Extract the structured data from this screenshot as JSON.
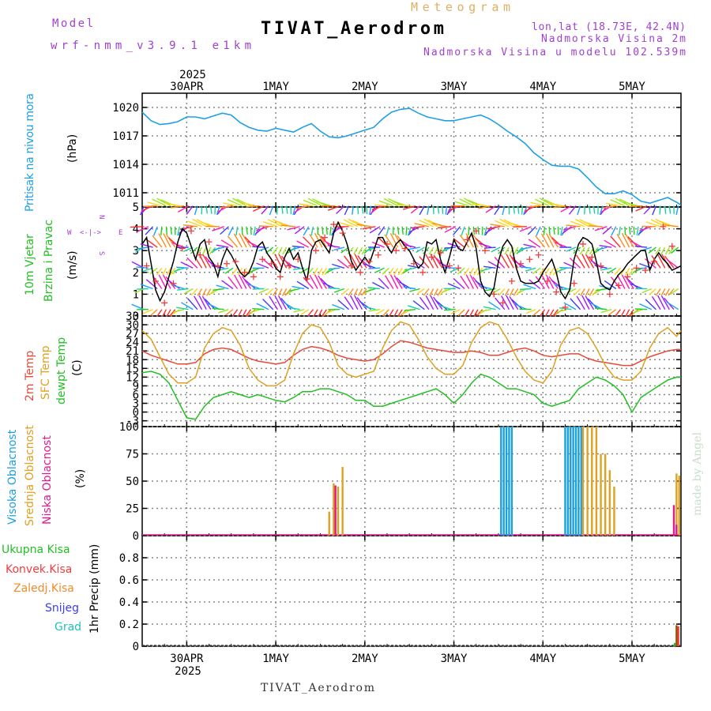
{
  "header": {
    "model_label": "Model",
    "model_name": "wrf-nmm_v3.9.1 e1km",
    "title": "TIVAT_Aerodrom",
    "subtitle": "Meteogram",
    "lonlat": "lon,lat (18.73E, 42.4N)",
    "elev": "Nadmorska Visina 2m",
    "elev_model": "Nadmorska Visina u modelu 102.539m",
    "footer": "TIVAT_Aerodrom",
    "credit": "made by Angel"
  },
  "colors": {
    "pressure": "#1ea0e6",
    "wind_speed": "#000000",
    "gust": "#f03c3c",
    "temp2m": "#e84a3a",
    "sfc": "#e0a020",
    "dewpt": "#22c022",
    "high_cloud": "#1a9fe0",
    "mid_cloud": "#e0a020",
    "low_cloud": "#e01a8c"
  },
  "time_axis": {
    "year": "2025",
    "labels": [
      "30APR",
      "1MAY",
      "2MAY",
      "3MAY",
      "4MAY",
      "5MAY"
    ],
    "day_range": [
      -0.5,
      5.55
    ]
  },
  "panels": {
    "pressure": {
      "ylabel": "Pritisak na nivou mora",
      "unit": "(hPa)",
      "ticks": [
        "1020",
        "1017",
        "1014",
        "1011"
      ]
    },
    "wind": {
      "ylabel1": "10m Vjetar",
      "ylabel2": "Brzina i Pravac",
      "unit": "(m/s)",
      "ticks": [
        "5",
        "4",
        "3",
        "2",
        "1",
        "0"
      ],
      "compass": {
        "n": "N",
        "s": "S",
        "w": "W",
        "e": "E",
        "nl": "<-|->",
        "sl": "<-|->"
      }
    },
    "temp": {
      "ylabel1": "2m Temp",
      "ylabel2": "SFC Temp",
      "ylabel3": "dewpt Temp",
      "unit": "(C)",
      "ticks": [
        "33",
        "30",
        "27",
        "24",
        "21",
        "18",
        "15",
        "12",
        "9",
        "6",
        "3",
        "0",
        "-3"
      ]
    },
    "cloud": {
      "ylabel1": "Visoka Oblacnost",
      "ylabel2": "Srednja Oblacnost",
      "ylabel3": "Niska Oblacnost",
      "unit": "(%)",
      "ticks": [
        "100",
        "75",
        "50",
        "25",
        "0"
      ]
    },
    "precip": {
      "legend": [
        "Ukupna Kisa",
        "Konvek.Kisa",
        "Zaledj.Kisa",
        "Snijeg",
        "Grad"
      ],
      "legend_colors": [
        "#22c022",
        "#f03c3c",
        "#f08c2a",
        "#3c3cf0",
        "#22c0c0"
      ],
      "ylabel": "1hr Precip (mm)",
      "ticks": [
        "0.8",
        "0.6",
        "0.4",
        "0.2",
        "0"
      ]
    }
  },
  "chart_data": [
    {
      "type": "line",
      "name": "pressure",
      "x_unit": "days from 30APR 00",
      "ylim": [
        1009.5,
        1021.5
      ],
      "x": [
        -0.5,
        -0.4,
        -0.3,
        -0.2,
        -0.1,
        0,
        0.1,
        0.2,
        0.3,
        0.4,
        0.5,
        0.6,
        0.7,
        0.8,
        0.9,
        1,
        1.1,
        1.2,
        1.3,
        1.4,
        1.5,
        1.6,
        1.7,
        1.8,
        1.9,
        2,
        2.1,
        2.2,
        2.3,
        2.4,
        2.5,
        2.6,
        2.7,
        2.8,
        2.9,
        3,
        3.1,
        3.2,
        3.3,
        3.4,
        3.5,
        3.6,
        3.7,
        3.8,
        3.9,
        4,
        4.1,
        4.2,
        4.3,
        4.4,
        4.5,
        4.6,
        4.7,
        4.8,
        4.9,
        5,
        5.1,
        5.2,
        5.3,
        5.4,
        5.5,
        5.55
      ],
      "y": [
        1019.5,
        1018.6,
        1018.2,
        1018.3,
        1018.5,
        1019.0,
        1019.0,
        1018.8,
        1019.1,
        1019.4,
        1019.2,
        1018.4,
        1017.9,
        1017.6,
        1017.5,
        1017.8,
        1017.6,
        1017.4,
        1017.9,
        1018.3,
        1017.5,
        1016.9,
        1016.8,
        1017.0,
        1017.3,
        1017.6,
        1017.9,
        1018.8,
        1019.5,
        1019.8,
        1019.9,
        1019.4,
        1019.0,
        1018.8,
        1018.6,
        1018.6,
        1018.8,
        1019.0,
        1019.2,
        1018.8,
        1018.2,
        1017.5,
        1016.9,
        1016.2,
        1015.2,
        1014.5,
        1013.9,
        1013.8,
        1013.8,
        1013.5,
        1012.6,
        1011.6,
        1010.9,
        1010.9,
        1011.2,
        1010.8,
        1010.1,
        1009.9,
        1010.2,
        1010.5,
        1010.0,
        1009.7
      ]
    },
    {
      "type": "line",
      "name": "wind speed",
      "ylim": [
        0,
        5
      ],
      "x": [
        -0.5,
        -0.45,
        -0.4,
        -0.35,
        -0.3,
        -0.25,
        -0.2,
        -0.15,
        -0.1,
        -0.05,
        0,
        0.05,
        0.1,
        0.15,
        0.2,
        0.25,
        0.3,
        0.35,
        0.4,
        0.45,
        0.5,
        0.55,
        0.6,
        0.65,
        0.7,
        0.75,
        0.8,
        0.85,
        0.9,
        0.95,
        1,
        1.05,
        1.1,
        1.15,
        1.2,
        1.25,
        1.3,
        1.35,
        1.4,
        1.45,
        1.5,
        1.55,
        1.6,
        1.65,
        1.7,
        1.75,
        1.8,
        1.85,
        1.9,
        1.95,
        2,
        2.05,
        2.1,
        2.15,
        2.2,
        2.25,
        2.3,
        2.35,
        2.4,
        2.45,
        2.5,
        2.55,
        2.6,
        2.65,
        2.7,
        2.75,
        2.8,
        2.85,
        2.9,
        2.95,
        3,
        3.05,
        3.1,
        3.15,
        3.2,
        3.25,
        3.3,
        3.35,
        3.4,
        3.45,
        3.5,
        3.55,
        3.6,
        3.65,
        3.7,
        3.75,
        3.8,
        3.85,
        3.9,
        3.95,
        4,
        4.05,
        4.1,
        4.15,
        4.2,
        4.25,
        4.3,
        4.35,
        4.4,
        4.45,
        4.5,
        4.55,
        4.6,
        4.65,
        4.7,
        4.75,
        4.8,
        4.85,
        4.9,
        4.95,
        5,
        5.05,
        5.1,
        5.15,
        5.2,
        5.25,
        5.3,
        5.35,
        5.4,
        5.45,
        5.5,
        5.55
      ],
      "y": [
        3.3,
        3.6,
        2.4,
        1.2,
        0.7,
        1.1,
        1.8,
        2.5,
        3.4,
        4.0,
        3.8,
        3.2,
        2.6,
        3.3,
        3.5,
        2.7,
        2.4,
        1.8,
        2.6,
        3.1,
        2.8,
        2.4,
        2.0,
        1.8,
        2.0,
        2.5,
        3.2,
        3.4,
        2.9,
        2.6,
        2.2,
        2.0,
        2.7,
        3.1,
        2.6,
        2.9,
        2.2,
        1.6,
        3.0,
        3.4,
        3.5,
        3.2,
        2.9,
        3.8,
        4.3,
        3.9,
        3.3,
        2.5,
        2.1,
        2.4,
        2.7,
        2.4,
        3.0,
        3.6,
        3.6,
        3.2,
        2.9,
        3.3,
        3.5,
        3.2,
        3.0,
        2.6,
        2.2,
        2.4,
        3.4,
        3.3,
        3.5,
        2.6,
        2.0,
        2.7,
        3.5,
        3.1,
        3.0,
        3.4,
        3.8,
        3.1,
        1.6,
        1.1,
        0.9,
        1.3,
        2.5,
        3.2,
        3.5,
        3.2,
        2.2,
        1.6,
        1.5,
        1.5,
        1.5,
        1.6,
        2.0,
        2.3,
        2.6,
        2.0,
        1.1,
        0.8,
        1.2,
        2.6,
        3.3,
        3.6,
        3.5,
        3.3,
        2.5,
        1.5,
        1.3,
        1.2,
        1.6,
        1.9,
        2.1,
        2.4,
        2.6,
        2.8,
        3.0,
        3.0,
        2.1,
        2.6,
        2.9,
        2.6,
        2.4,
        2.1,
        2.2,
        2.3
      ]
    },
    {
      "type": "scatter",
      "name": "gust",
      "ylim": [
        0,
        5
      ],
      "x": [
        -0.45,
        -0.35,
        -0.25,
        -0.15,
        -0.05,
        0.05,
        0.15,
        0.25,
        0.35,
        0.45,
        0.55,
        0.65,
        0.75,
        0.85,
        0.95,
        1.05,
        1.15,
        1.25,
        1.35,
        1.45,
        1.55,
        1.65,
        1.75,
        1.85,
        1.95,
        2.05,
        2.15,
        2.25,
        2.35,
        2.45,
        2.55,
        2.65,
        2.75,
        2.85,
        2.95,
        3.05,
        3.15,
        3.25,
        3.35,
        3.45,
        3.55,
        3.65,
        3.75,
        3.85,
        3.95,
        4.05,
        4.15,
        4.25,
        4.35,
        4.45,
        4.55,
        4.65,
        4.75,
        4.85,
        4.95,
        5.05,
        5.15,
        5.25,
        5.35,
        5.45
      ],
      "y": [
        2.3,
        1.6,
        0.6,
        1.5,
        3.1,
        3.9,
        2.8,
        3.4,
        2.3,
        2.4,
        2.5,
        2.0,
        1.8,
        2.6,
        2.4,
        1.8,
        2.3,
        2.6,
        1.7,
        3.0,
        3.6,
        4.2,
        3.8,
        2.3,
        2.0,
        2.5,
        2.8,
        3.3,
        3.0,
        3.1,
        2.4,
        2.0,
        2.7,
        2.9,
        2.3,
        2.2,
        3.5,
        3.9,
        3.0,
        1.0,
        0.6,
        1.6,
        2.4,
        2.6,
        2.8,
        1.6,
        1.1,
        0.4,
        1.5,
        3.3,
        2.7,
        2.3,
        1.0,
        1.4,
        1.8,
        2.2,
        2.1,
        2.5,
        4.1,
        3.2
      ]
    },
    {
      "type": "line",
      "name": "temperature",
      "ylim": [
        -5,
        33
      ],
      "x": [
        -0.5,
        -0.4,
        -0.3,
        -0.2,
        -0.1,
        0,
        0.1,
        0.2,
        0.3,
        0.4,
        0.5,
        0.6,
        0.7,
        0.8,
        0.9,
        1,
        1.1,
        1.2,
        1.3,
        1.4,
        1.5,
        1.6,
        1.7,
        1.8,
        1.9,
        2,
        2.1,
        2.2,
        2.3,
        2.4,
        2.5,
        2.6,
        2.7,
        2.8,
        2.9,
        3,
        3.1,
        3.2,
        3.3,
        3.4,
        3.5,
        3.6,
        3.7,
        3.8,
        3.9,
        4,
        4.1,
        4.2,
        4.3,
        4.4,
        4.5,
        4.6,
        4.7,
        4.8,
        4.9,
        5,
        5.1,
        5.2,
        5.3,
        5.4,
        5.5,
        5.55
      ],
      "series": [
        {
          "key": "temp2m",
          "values": [
            21,
            19.5,
            18.5,
            17.5,
            16.5,
            16.5,
            17,
            20,
            21.5,
            22,
            21.5,
            20,
            18.5,
            17.5,
            17,
            16.5,
            17,
            19.5,
            21.5,
            22.5,
            22,
            21,
            19.5,
            18.5,
            18,
            17.5,
            18,
            20,
            22.5,
            24.5,
            24,
            23,
            22,
            21.5,
            21,
            20.5,
            20.5,
            21,
            20.5,
            19.5,
            19.5,
            20.5,
            21.5,
            22,
            21,
            19.5,
            19,
            19.5,
            20,
            20,
            18.5,
            17.5,
            17,
            16.5,
            16,
            16,
            17.5,
            19,
            20,
            21,
            21.5,
            21.5
          ]
        },
        {
          "key": "sfc",
          "values": [
            28,
            25,
            19,
            13,
            10,
            10,
            12,
            22,
            27,
            29,
            28,
            23,
            15,
            11,
            9,
            9,
            11,
            20,
            27,
            30,
            29,
            24,
            16,
            13,
            12,
            13,
            14,
            22,
            28,
            31,
            30,
            25,
            19,
            15,
            13,
            13,
            16,
            24,
            29,
            31,
            30,
            25,
            19,
            14,
            11,
            10,
            14,
            23,
            28,
            29,
            27,
            22,
            16,
            12,
            11,
            11,
            14,
            22,
            27,
            29,
            26,
            28
          ]
        },
        {
          "key": "dewpt",
          "values": [
            13.5,
            14,
            13,
            10,
            4,
            -2,
            -2.5,
            2,
            5,
            6,
            7,
            6,
            5,
            6,
            5,
            4,
            3.5,
            5,
            7,
            7,
            8,
            8,
            7,
            6,
            4,
            4,
            2,
            2,
            3,
            4,
            5,
            6,
            7,
            8,
            6,
            3,
            6,
            10,
            13,
            12,
            10,
            8,
            8,
            7,
            6,
            3,
            2,
            3,
            4,
            8,
            10,
            12,
            11,
            9,
            6,
            0,
            5,
            7,
            9,
            11,
            12,
            12
          ]
        }
      ]
    },
    {
      "type": "bar",
      "name": "cloud cover",
      "ylim": [
        0,
        100
      ],
      "series": [
        {
          "key": "high",
          "x": [
            3.53,
            3.56,
            3.59,
            3.62,
            3.65,
            4.25,
            4.28,
            4.31,
            4.34,
            4.37,
            4.4,
            4.43
          ],
          "values": [
            100,
            100,
            100,
            100,
            100,
            100,
            100,
            100,
            100,
            100,
            100,
            100
          ]
        },
        {
          "key": "mid",
          "x": [
            1.6,
            1.65,
            1.7,
            1.75,
            4.45,
            4.5,
            4.55,
            4.6,
            4.65,
            4.7,
            4.75,
            4.8,
            5.5,
            5.53
          ],
          "values": [
            22,
            48,
            45,
            63,
            100,
            100,
            100,
            100,
            75,
            75,
            60,
            45,
            57,
            55
          ]
        },
        {
          "key": "low",
          "x": [
            1.67,
            5.47,
            5.5
          ],
          "values": [
            46,
            28,
            10
          ]
        }
      ]
    },
    {
      "type": "bar",
      "name": "precipitation",
      "ylim": [
        0,
        1.0
      ],
      "x": [
        5.48,
        5.5,
        5.52
      ],
      "values": [
        0.03,
        0.19,
        0.18
      ]
    }
  ]
}
